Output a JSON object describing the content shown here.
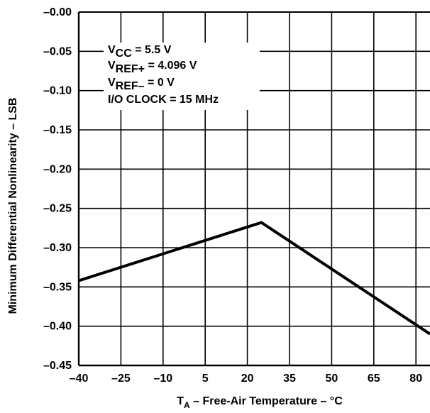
{
  "chart_data": {
    "type": "line",
    "x": [
      -40,
      25,
      85
    ],
    "series": [
      {
        "values": [
          -0.342,
          -0.268,
          -0.41
        ]
      }
    ],
    "xlim": [
      -40,
      85
    ],
    "ylim": [
      -0.45,
      0.0
    ],
    "x_ticks": [
      -40,
      -25,
      -10,
      5,
      20,
      35,
      50,
      65,
      80
    ],
    "x_tick_labels": [
      "–40",
      "–25",
      "–10",
      "5",
      "20",
      "35",
      "50",
      "65",
      "80"
    ],
    "y_ticks": [
      0,
      -0.05,
      -0.1,
      -0.15,
      -0.2,
      -0.25,
      -0.3,
      -0.35,
      -0.4,
      -0.45
    ],
    "y_tick_labels": [
      "–0.00",
      "–0.05",
      "–0.10",
      "–0.15",
      "–0.20",
      "–0.25",
      "–0.30",
      "–0.35",
      "–0.40",
      "–0.45"
    ],
    "grid": true,
    "xlabel": {
      "main": "T",
      "sub": "A",
      "rest": " – Free-Air Temperature – °C"
    },
    "ylabel": "Minimum Differential Nonlinearity – LSB",
    "conditions": [
      {
        "main": "V",
        "sub": "CC",
        "rest": " = 5.5 V"
      },
      {
        "main": "V",
        "sub": "REF+",
        "rest": " = 4.096 V"
      },
      {
        "main": "V",
        "sub": "REF–",
        "rest": " = 0 V"
      },
      {
        "main": "I/O CLOCK = 15 MHz",
        "sub": "",
        "rest": ""
      }
    ]
  }
}
